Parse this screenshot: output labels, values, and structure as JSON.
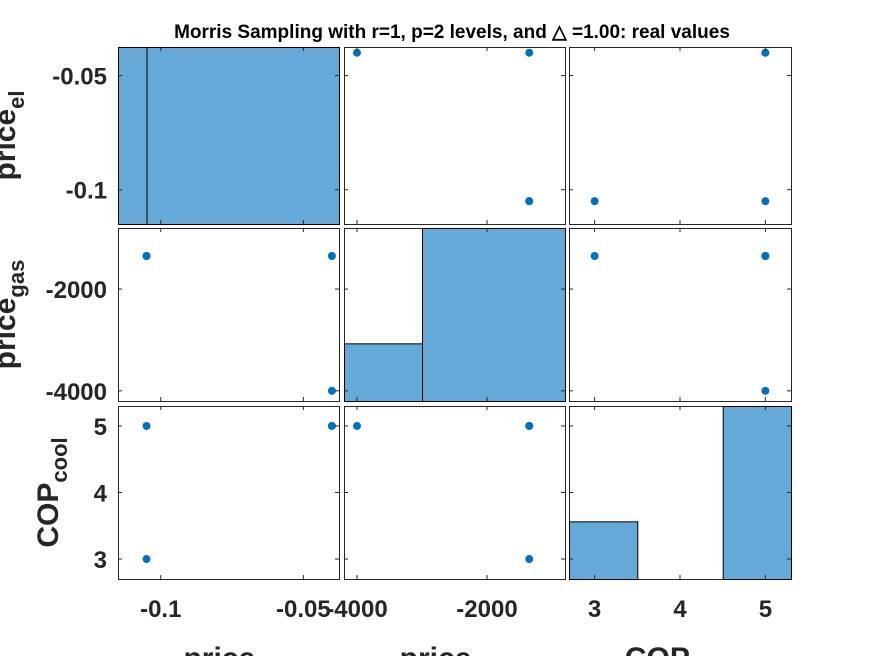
{
  "chart_data": {
    "type": "scatter",
    "title": "Morris Sampling with r=1, p=2 levels, and △ =1.00: real values",
    "variables": [
      {
        "label_main": "price",
        "label_sub": "el",
        "lim": [
          -0.115,
          -0.0375
        ],
        "ticks": [
          -0.1,
          -0.05
        ],
        "tick_labels": [
          "-0.1",
          "-0.05"
        ]
      },
      {
        "label_main": "price",
        "label_sub": "gas",
        "lim": [
          -4200,
          -800
        ],
        "ticks": [
          -4000,
          -2000
        ],
        "tick_labels": [
          "-4000",
          "-2000"
        ]
      },
      {
        "label_main": "COP",
        "label_sub": "cool",
        "lim": [
          2.7,
          5.3
        ],
        "ticks": [
          3,
          4,
          5
        ],
        "tick_labels": [
          "3",
          "4",
          "5"
        ]
      }
    ],
    "samples": [
      {
        "price_el": -0.105,
        "price_gas": -1350,
        "COP_cool": 3
      },
      {
        "price_el": -0.105,
        "price_gas": -1350,
        "COP_cool": 5
      },
      {
        "price_el": -0.04,
        "price_gas": -1350,
        "COP_cool": 5
      },
      {
        "price_el": -0.04,
        "price_gas": -4000,
        "COP_cool": 5
      }
    ],
    "histograms": [
      {
        "bins": [
          [
            -0.115,
            -0.105
          ],
          [
            -0.105,
            -0.0375
          ]
        ],
        "counts": [
          2,
          2
        ],
        "ylim": [
          0,
          2
        ]
      },
      {
        "bins": [
          [
            -4200,
            -3000
          ],
          [
            -3000,
            -800
          ]
        ],
        "counts": [
          1,
          3
        ],
        "ylim": [
          0,
          3
        ]
      },
      {
        "bins": [
          [
            2.7,
            3.5
          ],
          [
            3.5,
            4.5
          ],
          [
            4.5,
            5.3
          ]
        ],
        "counts": [
          1,
          0,
          3
        ],
        "ylim": [
          0,
          3
        ]
      }
    ],
    "colors": {
      "marker": "#0072bd",
      "bar": "#64a9d7"
    }
  }
}
